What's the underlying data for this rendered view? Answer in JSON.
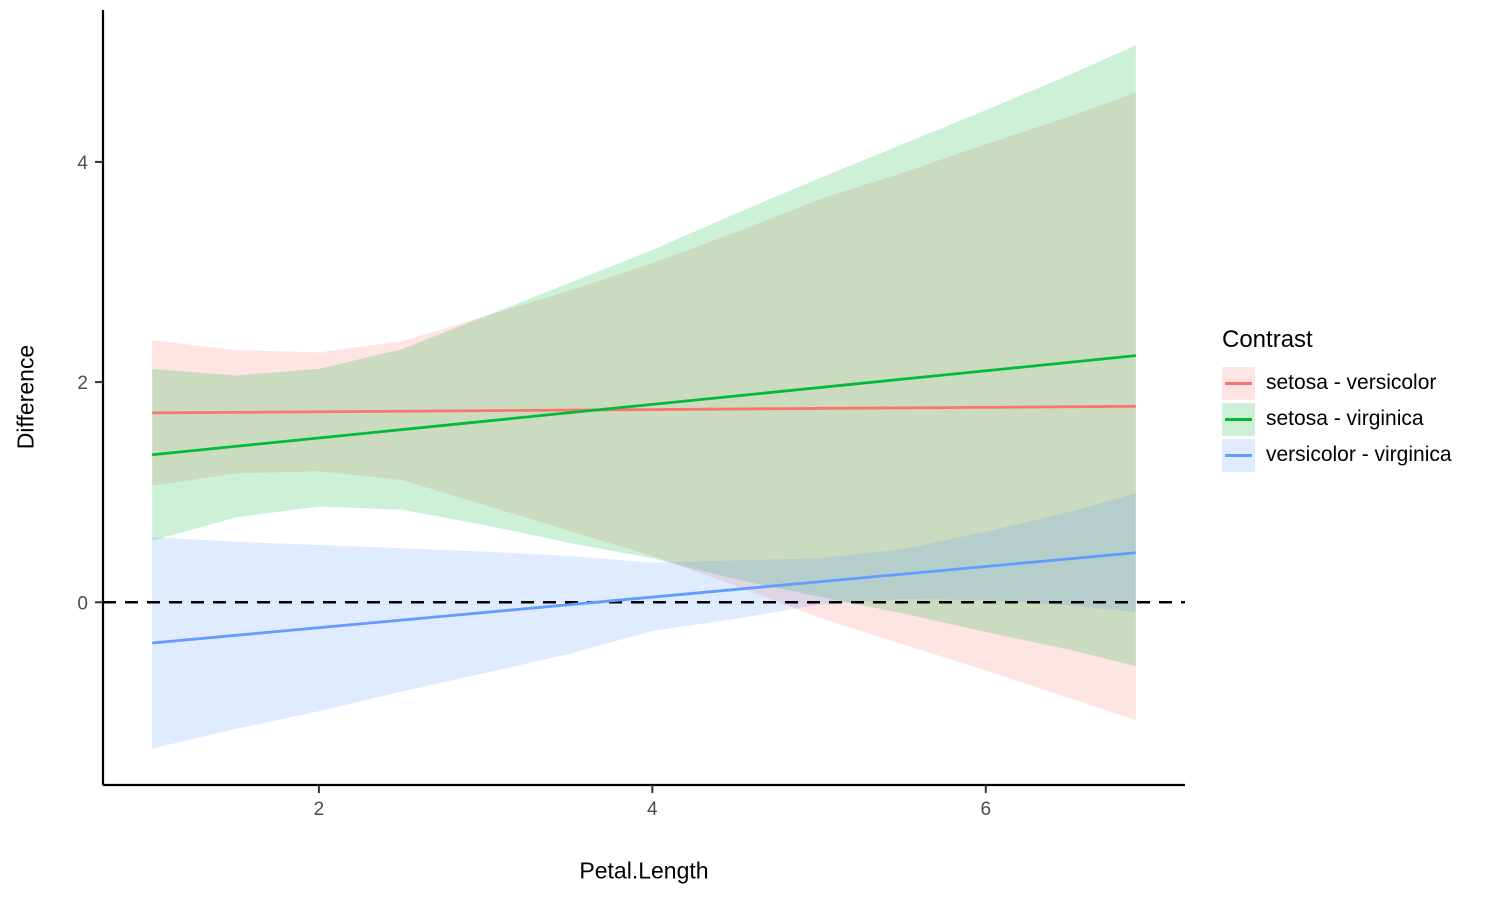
{
  "chart_data": {
    "type": "line",
    "title": "",
    "xlabel": "Petal.Length",
    "ylabel": "Difference",
    "x_ticks": [
      2,
      4,
      6
    ],
    "y_ticks": [
      0,
      2,
      4
    ],
    "xlim": [
      0.705,
      7.195
    ],
    "ylim": [
      -1.66,
      5.38
    ],
    "grid": false,
    "background_color": "#FFFFFF",
    "axis_line_color": "#000000",
    "tick_color": "#333333",
    "tick_label_color": "#4D4D4D",
    "fill_opacity": 0.2,
    "reference_line": {
      "y": 0,
      "style": "dashed",
      "color": "#000000"
    },
    "legend": {
      "title": "Contrast",
      "position": "right"
    },
    "series": [
      {
        "name": "setosa - versicolor",
        "color": "#F8766D",
        "line": {
          "x": [
            1,
            6.9
          ],
          "y": [
            1.72,
            1.78
          ]
        },
        "ribbon": {
          "x": [
            1,
            1.5,
            2,
            2.5,
            3,
            3.5,
            4,
            4.5,
            5,
            5.5,
            6,
            6.5,
            6.9
          ],
          "upper": [
            2.38,
            2.29,
            2.27,
            2.37,
            2.6,
            2.83,
            3.08,
            3.36,
            3.66,
            3.9,
            4.16,
            4.41,
            4.63
          ],
          "lower": [
            1.06,
            1.17,
            1.19,
            1.11,
            0.88,
            0.65,
            0.42,
            0.15,
            -0.14,
            -0.38,
            -0.62,
            -0.87,
            -1.07
          ]
        }
      },
      {
        "name": "setosa - virginica",
        "color": "#00BA38",
        "line": {
          "x": [
            1,
            6.9
          ],
          "y": [
            1.34,
            2.24
          ]
        },
        "ribbon": {
          "x": [
            1,
            1.5,
            2,
            2.5,
            3,
            3.5,
            4,
            4.5,
            5,
            5.5,
            6,
            6.5,
            6.9
          ],
          "upper": [
            2.12,
            2.06,
            2.12,
            2.3,
            2.6,
            2.9,
            3.2,
            3.53,
            3.85,
            4.16,
            4.47,
            4.79,
            5.06
          ],
          "lower": [
            0.56,
            0.77,
            0.87,
            0.84,
            0.7,
            0.54,
            0.4,
            0.21,
            0.05,
            -0.1,
            -0.27,
            -0.43,
            -0.58
          ]
        }
      },
      {
        "name": "versicolor - virginica",
        "color": "#619CFF",
        "line": {
          "x": [
            1,
            6.9
          ],
          "y": [
            -0.37,
            0.45
          ]
        },
        "ribbon": {
          "x": [
            1,
            1.5,
            2,
            2.5,
            3,
            3.5,
            4,
            4.5,
            5,
            5.5,
            6,
            6.5,
            6.9
          ],
          "upper": [
            0.59,
            0.55,
            0.52,
            0.49,
            0.46,
            0.42,
            0.36,
            0.38,
            0.4,
            0.48,
            0.64,
            0.82,
            0.99
          ],
          "lower": [
            -1.33,
            -1.15,
            -0.99,
            -0.81,
            -0.64,
            -0.47,
            -0.26,
            -0.15,
            -0.02,
            0.03,
            0.02,
            -0.03,
            -0.09
          ]
        }
      }
    ]
  }
}
